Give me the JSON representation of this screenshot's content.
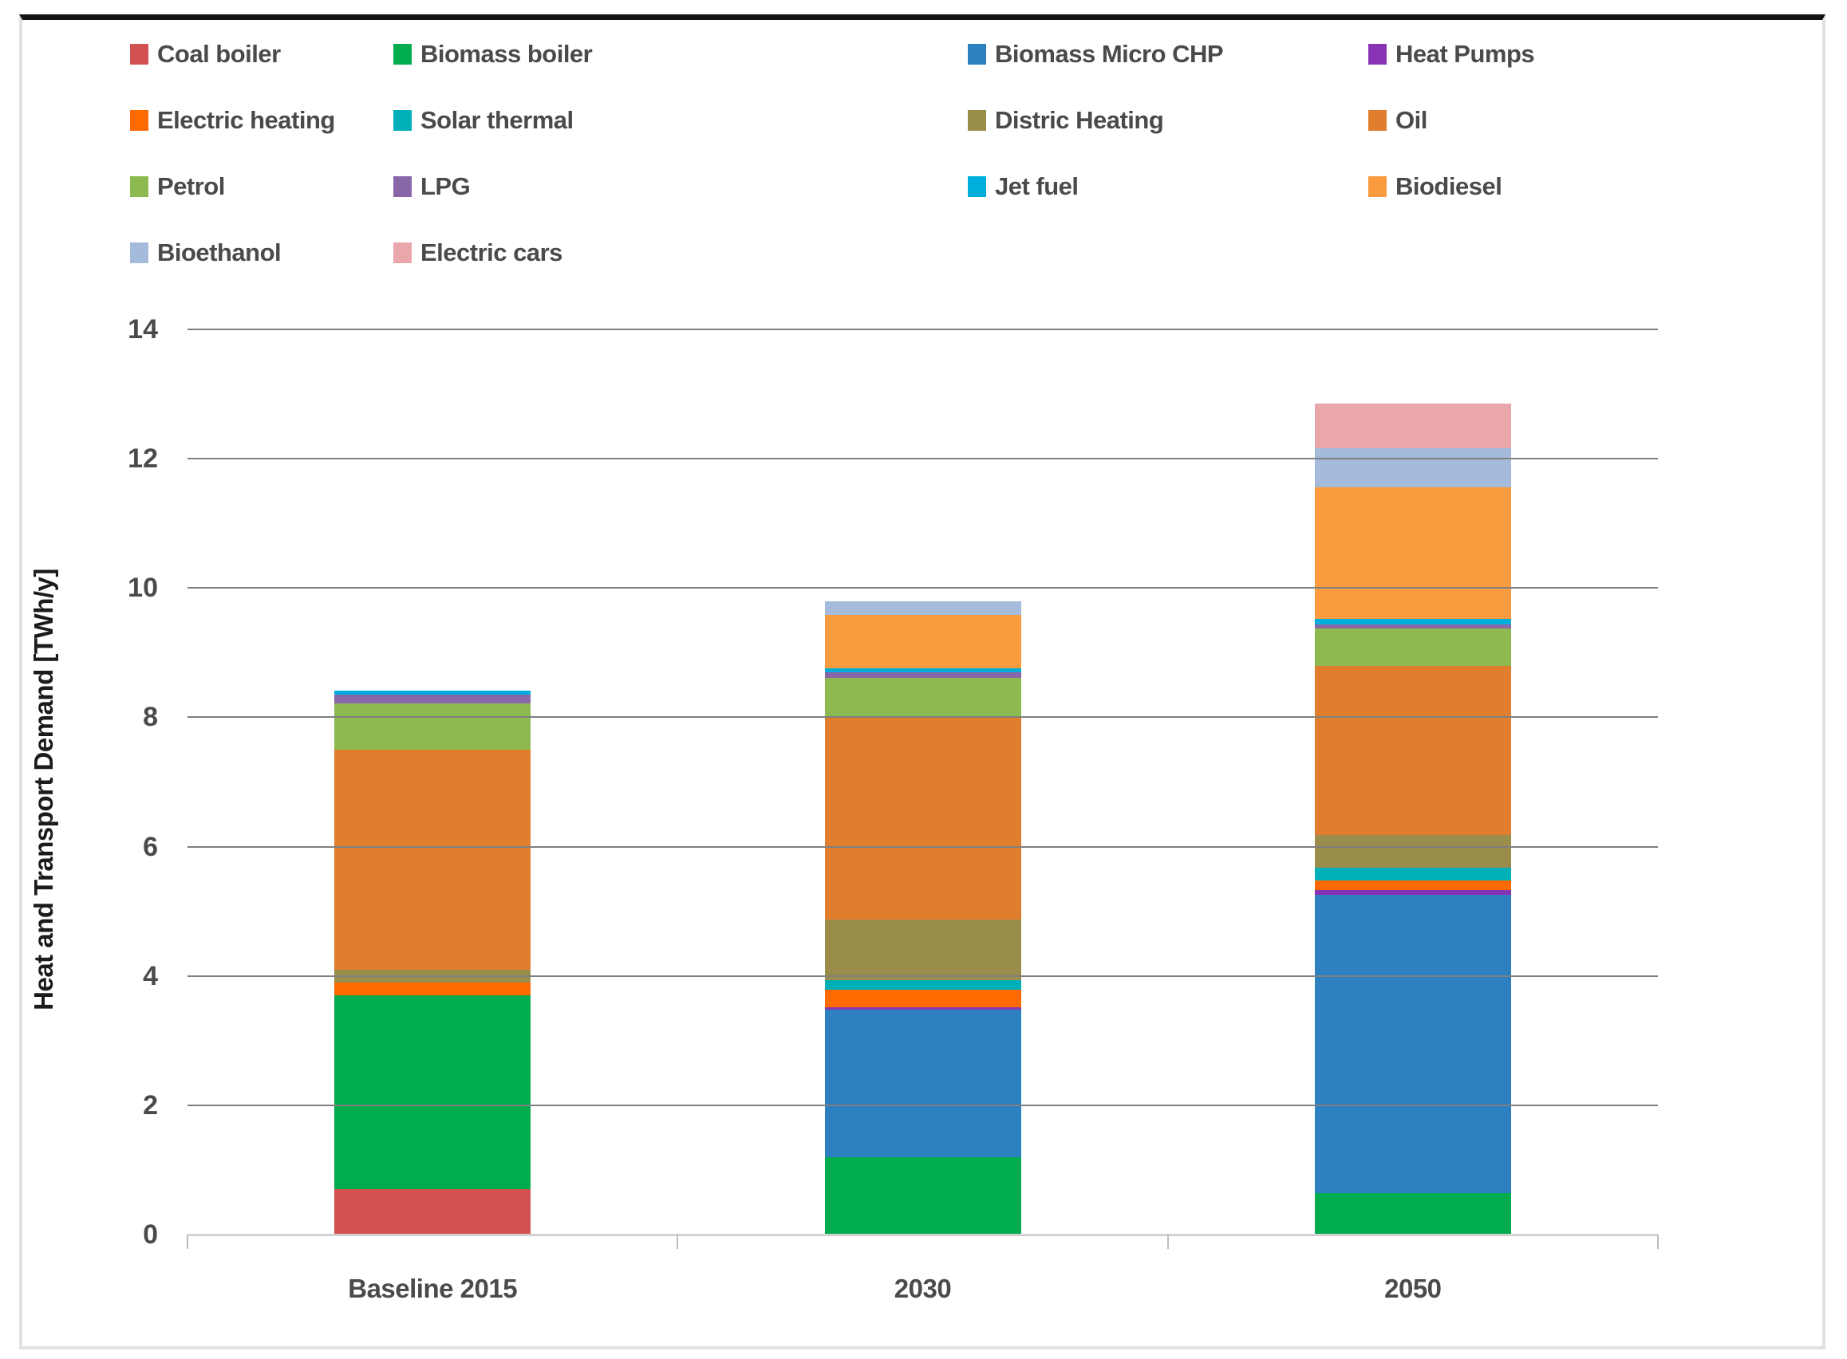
{
  "figure": {
    "background": "#ffffff",
    "frame_top_border_color": "#141414",
    "frame_side_border_color": "#e2e2e2",
    "gridline_color": "#7f7f7f",
    "axis_line_color": "#d2d2d2",
    "tick_label_color": "#4a4a4a",
    "axis_title_color": "#1b1b1b"
  },
  "chart_data": {
    "type": "bar",
    "stacked": true,
    "title": "",
    "xlabel": "",
    "ylabel": "Heat and Transport Demand [TWh/y]",
    "categories": [
      "Baseline 2015",
      "2030",
      "2050"
    ],
    "ylim": [
      0,
      14
    ],
    "y_ticks": [
      0,
      2,
      4,
      6,
      8,
      10,
      12,
      14
    ],
    "grid": true,
    "legend_position": "top",
    "legend_rows": 4,
    "legend_columns": 4,
    "series": [
      {
        "name": "Coal boiler",
        "color": "#D25252",
        "values": [
          0.7,
          0,
          0
        ]
      },
      {
        "name": "Biomass boiler",
        "color": "#00AC4E",
        "values": [
          3.0,
          1.2,
          0.64
        ]
      },
      {
        "name": "Biomass Micro CHP",
        "color": "#2E81C0",
        "values": [
          0,
          2.28,
          4.62
        ]
      },
      {
        "name": "Heat Pumps",
        "color": "#8833B3",
        "values": [
          0,
          0.04,
          0.07
        ]
      },
      {
        "name": "Electric heating",
        "color": "#FF6A00",
        "values": [
          0.2,
          0.27,
          0.15
        ]
      },
      {
        "name": "Solar thermal",
        "color": "#00B0B8",
        "values": [
          0,
          0.15,
          0.19
        ]
      },
      {
        "name": "Distric Heating",
        "color": "#9A8C4B",
        "values": [
          0.2,
          0.93,
          0.51
        ]
      },
      {
        "name": "Oil",
        "color": "#E07E2E",
        "values": [
          3.4,
          3.12,
          2.62
        ]
      },
      {
        "name": "Petrol",
        "color": "#8CBA51",
        "values": [
          0.72,
          0.62,
          0.57
        ]
      },
      {
        "name": "LPG",
        "color": "#8966A8",
        "values": [
          0.13,
          0.09,
          0.07
        ]
      },
      {
        "name": "Jet fuel",
        "color": "#00AEDC",
        "values": [
          0.06,
          0.06,
          0.08
        ]
      },
      {
        "name": "Biodiesel",
        "color": "#FB9B40",
        "values": [
          0,
          0.82,
          2.04
        ]
      },
      {
        "name": "Bioethanol",
        "color": "#A4BBDB",
        "values": [
          0,
          0.22,
          0.6
        ]
      },
      {
        "name": "Electric cars",
        "color": "#E9A6AB",
        "values": [
          0,
          0,
          0.69
        ]
      }
    ],
    "totals": [
      8.41,
      9.8,
      12.85
    ]
  }
}
